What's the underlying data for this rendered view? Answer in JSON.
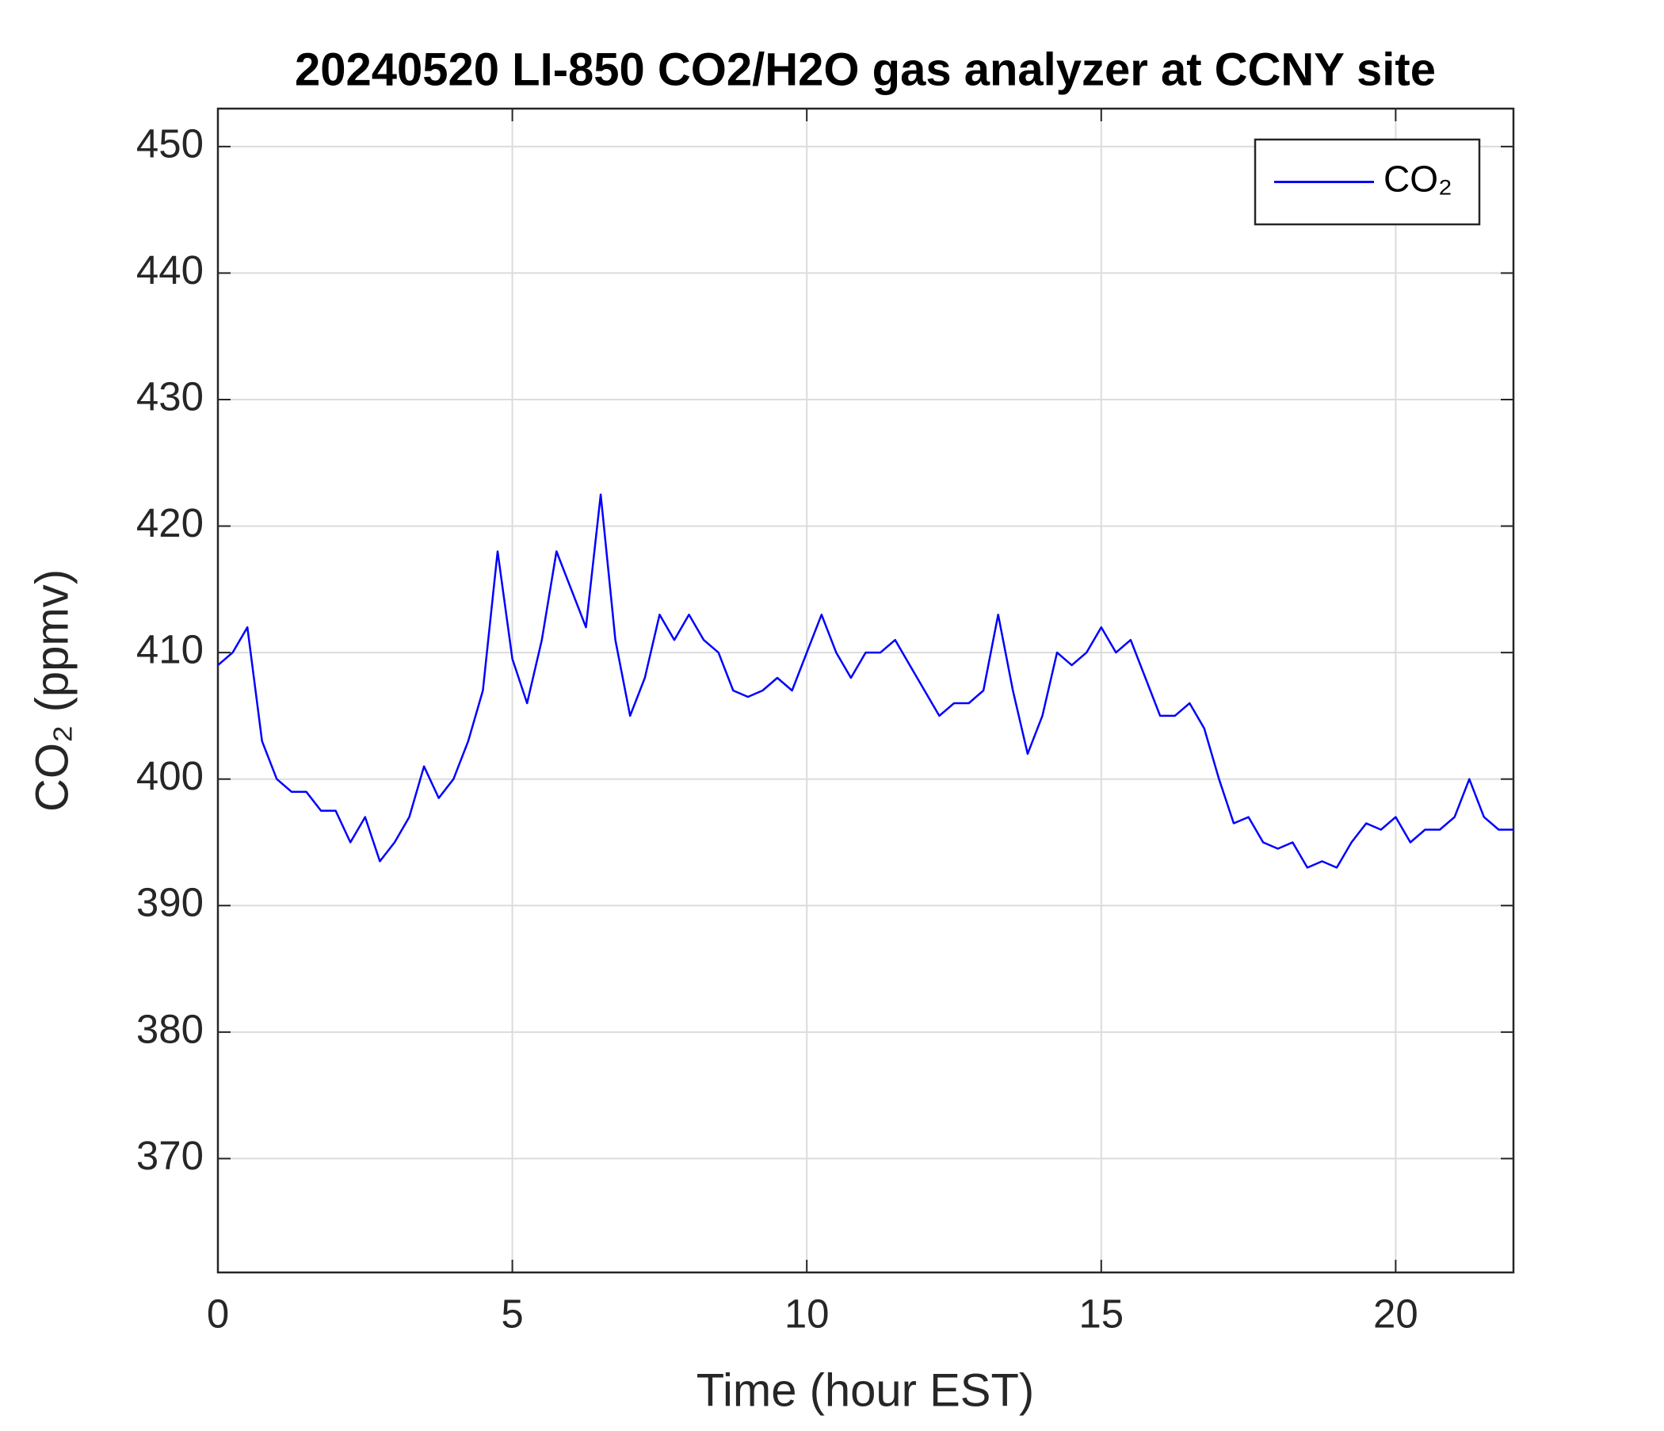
{
  "chart_data": {
    "type": "line",
    "title": "20240520 LI-850 CO2/H2O gas analyzer at CCNY site",
    "xlabel": "Time (hour EST)",
    "ylabel": "CO₂ (ppmv)",
    "x": [
      0,
      0.25,
      0.5,
      0.75,
      1,
      1.25,
      1.5,
      1.75,
      2,
      2.25,
      2.5,
      2.75,
      3,
      3.25,
      3.5,
      3.75,
      4,
      4.25,
      4.5,
      4.75,
      5,
      5.25,
      5.5,
      5.75,
      6,
      6.25,
      6.5,
      6.75,
      7,
      7.25,
      7.5,
      7.75,
      8,
      8.25,
      8.5,
      8.75,
      9,
      9.25,
      9.5,
      9.75,
      10,
      10.25,
      10.5,
      10.75,
      11,
      11.25,
      11.5,
      11.75,
      12,
      12.25,
      12.5,
      12.75,
      13,
      13.25,
      13.5,
      13.75,
      14,
      14.25,
      14.5,
      14.75,
      15,
      15.25,
      15.5,
      15.75,
      16,
      16.25,
      16.5,
      16.75,
      17,
      17.25,
      17.5,
      17.75,
      18,
      18.25,
      18.5,
      18.75,
      19,
      19.25,
      19.5,
      19.75,
      20,
      20.25,
      20.5,
      20.75,
      21,
      21.25,
      21.5,
      21.75,
      22
    ],
    "series": [
      {
        "name": "CO₂",
        "color": "#0000ff",
        "values": [
          409,
          410,
          412,
          403,
          400,
          399,
          399,
          397.5,
          397.5,
          395,
          397,
          393.5,
          395,
          397,
          401,
          398.5,
          400,
          403,
          407,
          418,
          409.5,
          406,
          411,
          418,
          415,
          412,
          422.5,
          411,
          405,
          408,
          413,
          411,
          413,
          411,
          410,
          407,
          406.5,
          407,
          408,
          407,
          410,
          413,
          410,
          408,
          410,
          410,
          411,
          409,
          407,
          405,
          406,
          406,
          407,
          413,
          407,
          402,
          405,
          410,
          409,
          410,
          412,
          410,
          411,
          408,
          405,
          405,
          406,
          404,
          400,
          396.5,
          397,
          395,
          394.5,
          395,
          393,
          393.5,
          393,
          395,
          396.5,
          396,
          397,
          395,
          396,
          396,
          397,
          400,
          397,
          396,
          396
        ]
      }
    ],
    "xlim": [
      0,
      22
    ],
    "xticks": [
      0,
      5,
      10,
      15,
      20
    ],
    "ylim": [
      361,
      453
    ],
    "yticks": [
      370,
      380,
      390,
      400,
      410,
      420,
      430,
      440,
      450
    ],
    "grid": true,
    "legend": "upper right"
  }
}
